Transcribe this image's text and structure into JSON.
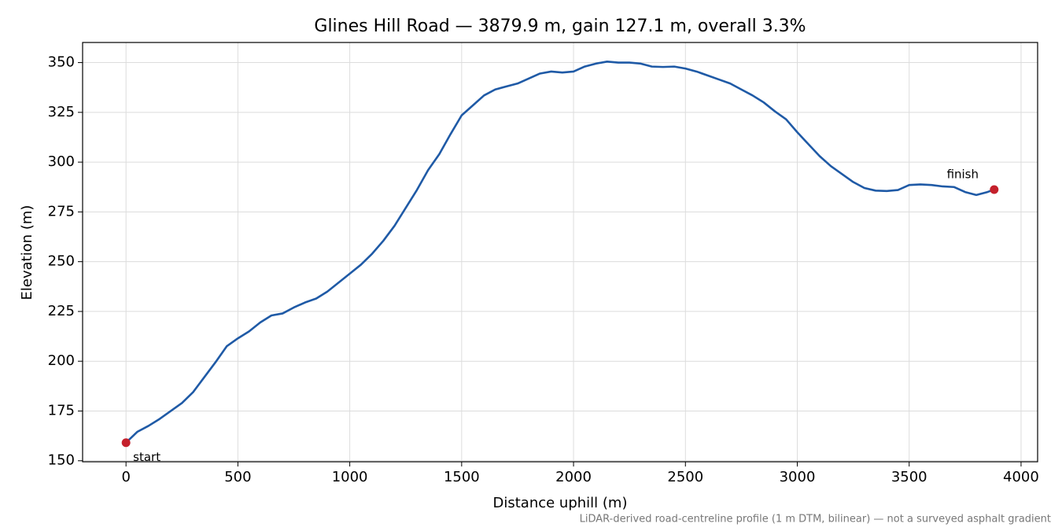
{
  "chart_data": {
    "type": "line",
    "title": "Glines Hill Road — 3879.9 m, gain 127.1 m, overall 3.3%",
    "x_label": "Distance uphill (m)",
    "y_label": "Elevation (m)",
    "footnote": "LiDAR-derived road-centreline profile (1 m DTM, bilinear) — not a surveyed asphalt gradient",
    "annotations": [
      "start",
      "finish"
    ],
    "marker_color": "#c4202b",
    "grid": true,
    "x": [
      0,
      50,
      100,
      150,
      200,
      250,
      300,
      350,
      400,
      450,
      500,
      550,
      600,
      650,
      700,
      750,
      800,
      850,
      900,
      950,
      1000,
      1050,
      1100,
      1150,
      1200,
      1250,
      1300,
      1350,
      1400,
      1450,
      1500,
      1550,
      1600,
      1650,
      1700,
      1750,
      1800,
      1850,
      1900,
      1950,
      2000,
      2050,
      2100,
      2150,
      2200,
      2250,
      2300,
      2350,
      2400,
      2450,
      2500,
      2550,
      2600,
      2650,
      2700,
      2750,
      2800,
      2850,
      2900,
      2950,
      3000,
      3050,
      3100,
      3150,
      3200,
      3250,
      3300,
      3350,
      3400,
      3450,
      3500,
      3550,
      3600,
      3650,
      3700,
      3750,
      3800,
      3850,
      3879.9
    ],
    "series": [
      {
        "color": "#1f5aa6",
        "values": [
          159.1,
          164.5,
          167.5,
          171,
          175,
          179,
          184.5,
          192,
          199.5,
          207.5,
          211.5,
          215,
          219.5,
          223,
          224,
          227,
          229.5,
          231.5,
          235,
          239.5,
          244,
          248.5,
          254,
          260.5,
          268,
          277,
          286,
          296,
          304,
          314,
          323.5,
          328.5,
          333.5,
          336.5,
          338,
          339.5,
          342,
          344.5,
          345.5,
          345,
          345.5,
          348,
          349.5,
          350.5,
          350,
          350,
          349.5,
          348,
          347.8,
          348,
          347,
          345.5,
          343.5,
          341.5,
          339.5,
          336.5,
          333.5,
          330,
          325.5,
          321.5,
          315,
          309,
          303,
          298,
          294,
          290,
          287,
          285.7,
          285.5,
          286,
          288.5,
          288.8,
          288.5,
          287.8,
          287.5,
          285,
          283.5,
          285,
          286.2
        ]
      }
    ],
    "xlim": [
      -194,
      4074
    ],
    "ylim": [
      149.5,
      360.1
    ],
    "xticks": [
      0,
      500,
      1000,
      1500,
      2000,
      2500,
      3000,
      3500,
      4000
    ],
    "yticks": [
      150,
      175,
      200,
      225,
      250,
      275,
      300,
      325,
      350
    ]
  }
}
